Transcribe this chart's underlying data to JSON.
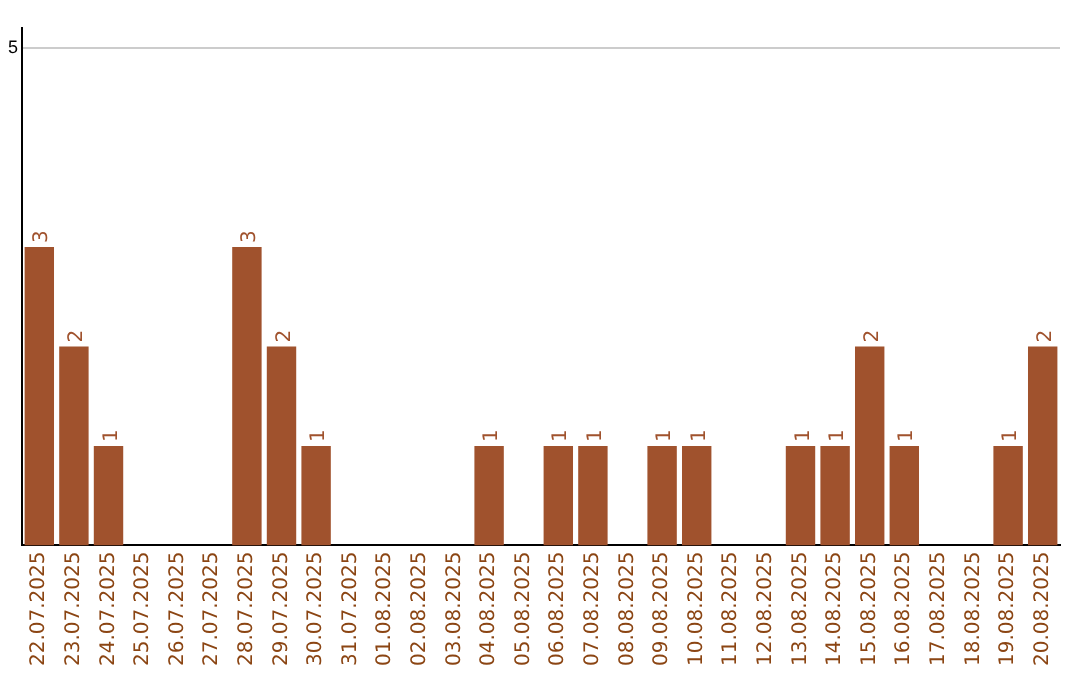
{
  "chart_data": {
    "type": "bar",
    "categories": [
      "22.07.2025",
      "23.07.2025",
      "24.07.2025",
      "25.07.2025",
      "26.07.2025",
      "27.07.2025",
      "28.07.2025",
      "29.07.2025",
      "30.07.2025",
      "31.07.2025",
      "01.08.2025",
      "02.08.2025",
      "03.08.2025",
      "04.08.2025",
      "05.08.2025",
      "06.08.2025",
      "07.08.2025",
      "08.08.2025",
      "09.08.2025",
      "10.08.2025",
      "11.08.2025",
      "12.08.2025",
      "13.08.2025",
      "14.08.2025",
      "15.08.2025",
      "16.08.2025",
      "17.08.2025",
      "18.08.2025",
      "19.08.2025",
      "20.08.2025"
    ],
    "values": [
      3,
      2,
      1,
      0,
      0,
      0,
      3,
      2,
      1,
      0,
      0,
      0,
      0,
      1,
      0,
      1,
      1,
      0,
      1,
      1,
      0,
      0,
      1,
      1,
      2,
      1,
      0,
      0,
      1,
      2
    ],
    "value_labels": [
      "3",
      "2",
      "1",
      null,
      null,
      null,
      "3",
      "2",
      "1",
      null,
      null,
      null,
      null,
      "1",
      null,
      "1",
      "1",
      null,
      "1",
      "1",
      null,
      null,
      "1",
      "1",
      "2",
      "1",
      null,
      null,
      "1",
      "2"
    ],
    "color": "#a0522d",
    "ylim": [
      0,
      5.2
    ],
    "yticks": [
      5
    ],
    "grid": "y"
  }
}
